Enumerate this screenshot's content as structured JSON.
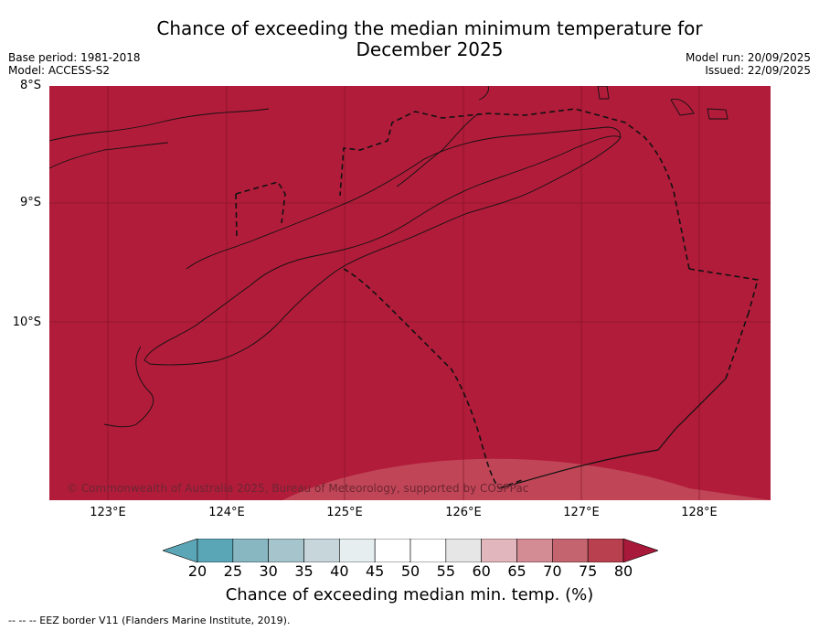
{
  "title_line1": "Chance of exceeding the median minimum temperature for",
  "title_line2": "December 2025",
  "base_period": "Base period: 1981-2018",
  "model": "Model: ACCESS-S2",
  "model_run": "Model run: 20/09/2025",
  "issued": "Issued: 22/09/2025",
  "lat_labels": [
    "8°S",
    "9°S",
    "10°S"
  ],
  "lon_labels": [
    "123°E",
    "124°E",
    "125°E",
    "126°E",
    "127°E",
    "128°E"
  ],
  "copyright": "© Commonwealth of Australia 2025, Bureau of Meteorology, supported by COSPPac",
  "colorbar": {
    "ticks": [
      "20",
      "25",
      "30",
      "35",
      "40",
      "45",
      "50",
      "55",
      "60",
      "65",
      "70",
      "75",
      "80"
    ],
    "colors": [
      "#5aa6b6",
      "#88b7c2",
      "#a6c4cb",
      "#c6d6db",
      "#e6eef0",
      "#ffffff",
      "#ffffff",
      "#e6e6e6",
      "#e1b6bd",
      "#d38b94",
      "#c4646f",
      "#b8404f",
      "#a8193a"
    ],
    "label": "Chance of exceeding median min. temp. (%)"
  },
  "map_colors": {
    "main": "#b11c3a",
    "southern_patch": "#c04657"
  },
  "footnote": "--  --  -- EEZ border V11 (Flanders Marine Institute, 2019)."
}
